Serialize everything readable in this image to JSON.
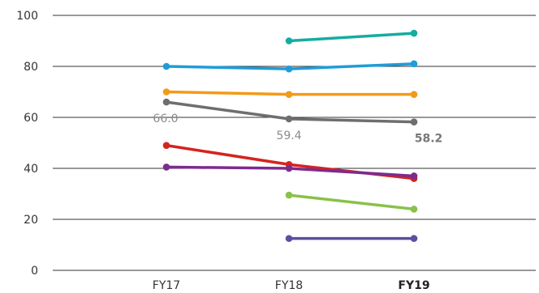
{
  "chart_data": {
    "type": "line",
    "categories": [
      "FY17",
      "FY18",
      "FY19"
    ],
    "bold_categories": [
      "FY19"
    ],
    "ylim": [
      0,
      100
    ],
    "yticks": [
      0,
      20,
      40,
      60,
      80,
      100
    ],
    "grid": true,
    "series": [
      {
        "color": "#13ada0",
        "values": [
          null,
          90,
          93
        ]
      },
      {
        "color": "#1f9cd9",
        "values": [
          80,
          79,
          81
        ]
      },
      {
        "color": "#f39a17",
        "values": [
          70,
          69,
          69
        ]
      },
      {
        "color": "#6e6e6e",
        "values": [
          66,
          59.4,
          58.2
        ],
        "data_labels": [
          "66.0",
          "59.4",
          "58.2"
        ],
        "bold_labels": [
          false,
          false,
          true
        ]
      },
      {
        "color": "#d5231f",
        "values": [
          49,
          41.5,
          36
        ]
      },
      {
        "color": "#7d2b8e",
        "values": [
          40.5,
          40,
          37
        ]
      },
      {
        "color": "#8ac149",
        "values": [
          null,
          29.5,
          24
        ]
      },
      {
        "color": "#5b4fa0",
        "values": [
          null,
          12.5,
          12.5
        ]
      }
    ]
  }
}
